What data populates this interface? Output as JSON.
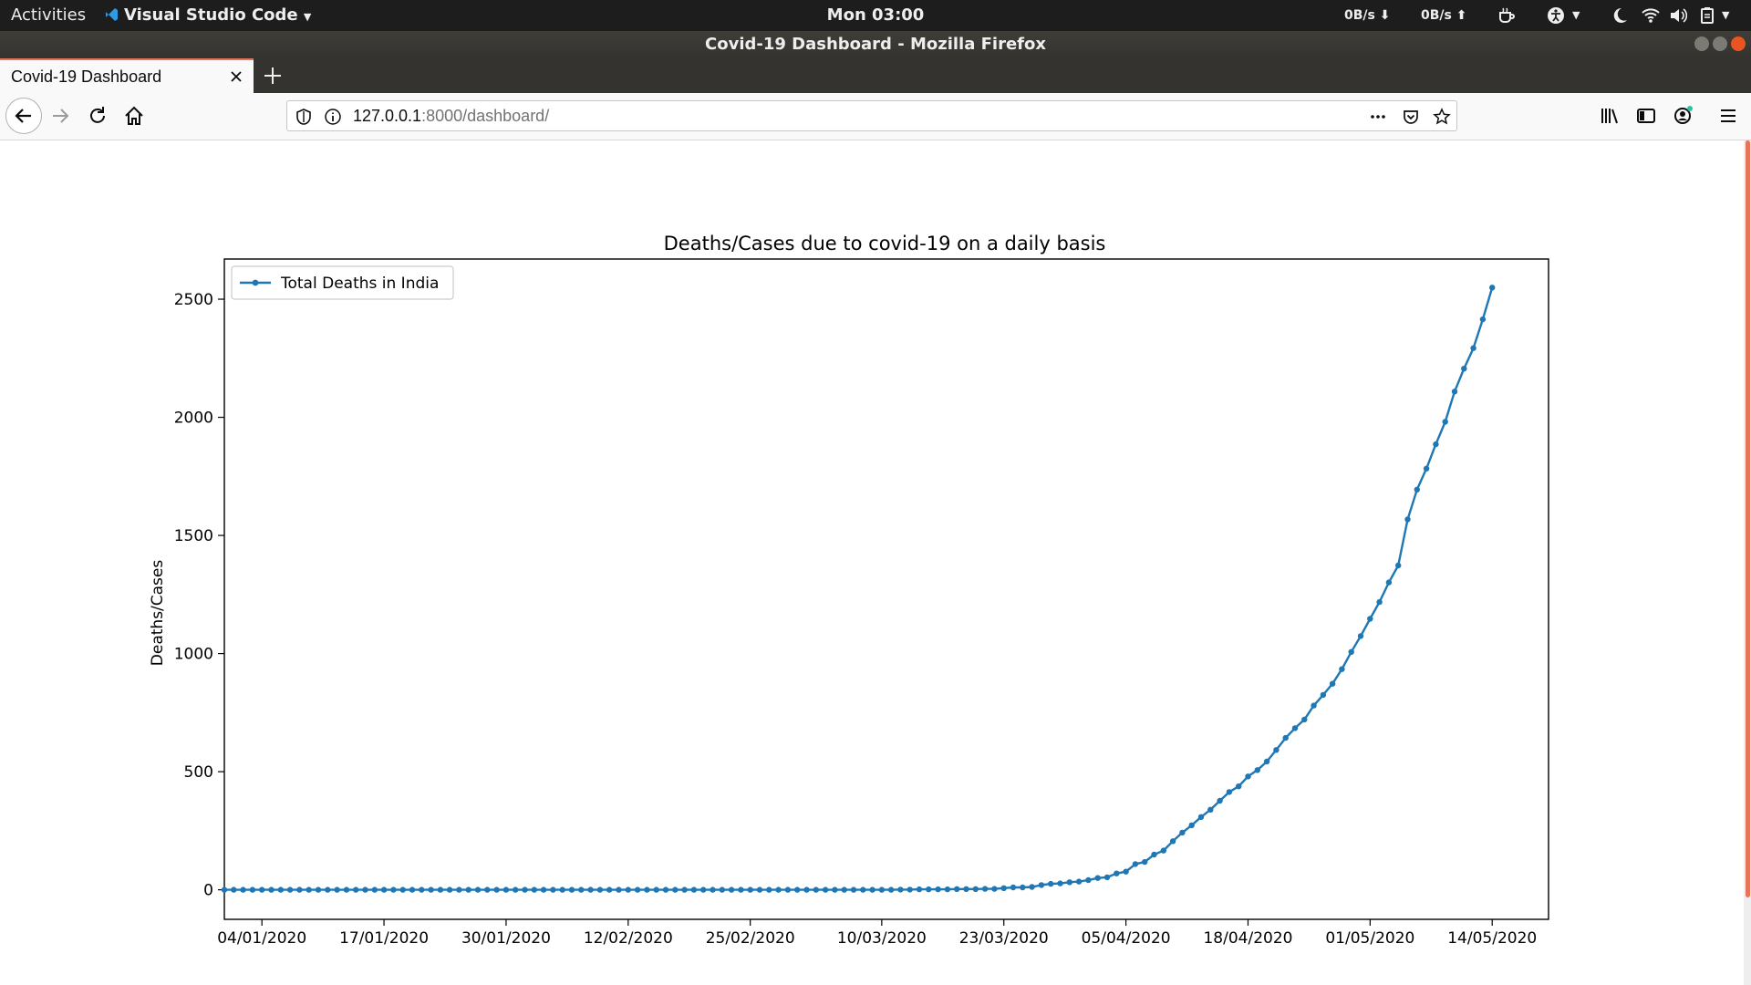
{
  "system_bar": {
    "activities": "Activities",
    "app_name": "Visual Studio Code",
    "clock": "Mon 03:00",
    "net_down": "0B/s",
    "net_up": "0B/s"
  },
  "window": {
    "title": "Covid-19 Dashboard - Mozilla Firefox"
  },
  "tab": {
    "title": "Covid-19 Dashboard"
  },
  "url": {
    "host": "127.0.0.1",
    "rest": ":8000/dashboard/"
  },
  "colors": {
    "series": "#1f77b4",
    "accent": "#e8735a",
    "system_bar": "#1d1d1d"
  },
  "chart_data": {
    "type": "line",
    "title": "Deaths/Cases due to covid-19 on a daily basis",
    "xlabel": "",
    "ylabel": "Deaths/Cases",
    "x_tick_labels": [
      "04/01/2020",
      "17/01/2020",
      "30/01/2020",
      "12/02/2020",
      "25/02/2020",
      "10/03/2020",
      "23/03/2020",
      "05/04/2020",
      "18/04/2020",
      "01/05/2020",
      "14/05/2020"
    ],
    "y_ticks": [
      0,
      500,
      1000,
      1500,
      2000,
      2500
    ],
    "ylim": [
      -125,
      2670
    ],
    "x_range_dates": [
      "31/12/2019",
      "20/05/2020"
    ],
    "legend_location": "upper left",
    "grid": false,
    "series": [
      {
        "name": "Total Deaths in India",
        "marker": "dot",
        "start_date": "31/12/2019",
        "values": [
          0,
          0,
          0,
          0,
          0,
          0,
          0,
          0,
          0,
          0,
          0,
          0,
          0,
          0,
          0,
          0,
          0,
          0,
          0,
          0,
          0,
          0,
          0,
          0,
          0,
          0,
          0,
          0,
          0,
          0,
          0,
          0,
          0,
          0,
          0,
          0,
          0,
          0,
          0,
          0,
          0,
          0,
          0,
          0,
          0,
          0,
          0,
          0,
          0,
          0,
          0,
          0,
          0,
          0,
          0,
          0,
          0,
          0,
          0,
          0,
          0,
          0,
          0,
          0,
          0,
          0,
          0,
          0,
          0,
          0,
          0,
          0,
          1,
          1,
          2,
          2,
          2,
          2,
          3,
          3,
          3,
          4,
          4,
          7,
          10,
          10,
          12,
          20,
          25,
          27,
          32,
          35,
          41,
          50,
          53,
          69,
          77,
          109,
          118,
          149,
          166,
          206,
          242,
          273,
          308,
          339,
          377,
          414,
          438,
          480,
          507,
          543,
          592,
          643,
          684,
          721,
          780,
          825,
          872,
          934,
          1007,
          1074,
          1147,
          1218,
          1301,
          1373,
          1568,
          1694,
          1783,
          1886,
          1981,
          2109,
          2206,
          2293,
          2415,
          2549
        ]
      }
    ]
  }
}
